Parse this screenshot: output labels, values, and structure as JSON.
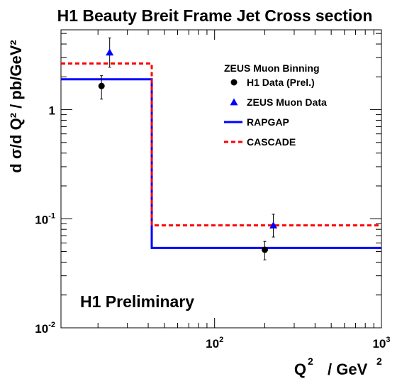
{
  "chart_data": {
    "type": "line",
    "title": "H1 Beauty Breit Frame Jet Cross section",
    "xlabel": {
      "main": "Q",
      "sup": "2",
      "unit": "/ GeV",
      "unit_sup": "2"
    },
    "ylabel": "d σ/d Q² / pb/GeV²",
    "xscale": "log",
    "yscale": "log",
    "xlim": [
      12,
      1000
    ],
    "ylim": [
      0.01,
      5.4
    ],
    "x_ticks": [
      {
        "value": 100,
        "base": "10",
        "exp": "2"
      },
      {
        "value": 1000,
        "base": "10",
        "exp": "3"
      }
    ],
    "y_ticks": [
      {
        "value": 0.01,
        "base": "10",
        "exp": "-2"
      },
      {
        "value": 0.1,
        "base": "10",
        "exp": "-1"
      },
      {
        "value": 1,
        "base": "1",
        "exp": ""
      }
    ],
    "legend": {
      "title": "ZEUS Muon Binning",
      "position": "top-right",
      "entries": [
        {
          "label": "H1 Data (Prel.)",
          "marker": "circle",
          "color": "#000000"
        },
        {
          "label": "ZEUS Muon Data",
          "marker": "triangle",
          "color": "#0000ff"
        },
        {
          "label": "RAPGAP",
          "style": "solid",
          "color": "#0000ff"
        },
        {
          "label": "CASCADE",
          "style": "dashed",
          "color": "#ff0000"
        }
      ]
    },
    "series": [
      {
        "name": "H1 Data (Prel.)",
        "kind": "points",
        "marker": "circle",
        "color": "#000000",
        "points": [
          {
            "x": 21,
            "y": 1.65,
            "ylo": 1.25,
            "yhi": 2.05
          },
          {
            "x": 200,
            "y": 0.052,
            "ylo": 0.042,
            "yhi": 0.062
          }
        ]
      },
      {
        "name": "ZEUS Muon Data",
        "kind": "points",
        "marker": "triangle",
        "color": "#0000ff",
        "points": [
          {
            "x": 23.5,
            "y": 3.35,
            "ylo": 2.45,
            "yhi": 4.55
          },
          {
            "x": 225,
            "y": 0.087,
            "ylo": 0.068,
            "yhi": 0.11
          }
        ]
      },
      {
        "name": "RAPGAP",
        "kind": "step",
        "style": "solid",
        "color": "#0000ff",
        "bins": [
          {
            "xlo": 12,
            "xhi": 42,
            "y": 1.9
          },
          {
            "xlo": 42,
            "xhi": 1000,
            "y": 0.054
          }
        ]
      },
      {
        "name": "CASCADE",
        "kind": "step",
        "style": "dashed",
        "color": "#ff0000",
        "bins": [
          {
            "xlo": 12,
            "xhi": 42,
            "y": 2.65
          },
          {
            "xlo": 42,
            "xhi": 1000,
            "y": 0.087
          }
        ]
      }
    ],
    "annotations": [
      {
        "text": "H1 Preliminary"
      }
    ]
  }
}
